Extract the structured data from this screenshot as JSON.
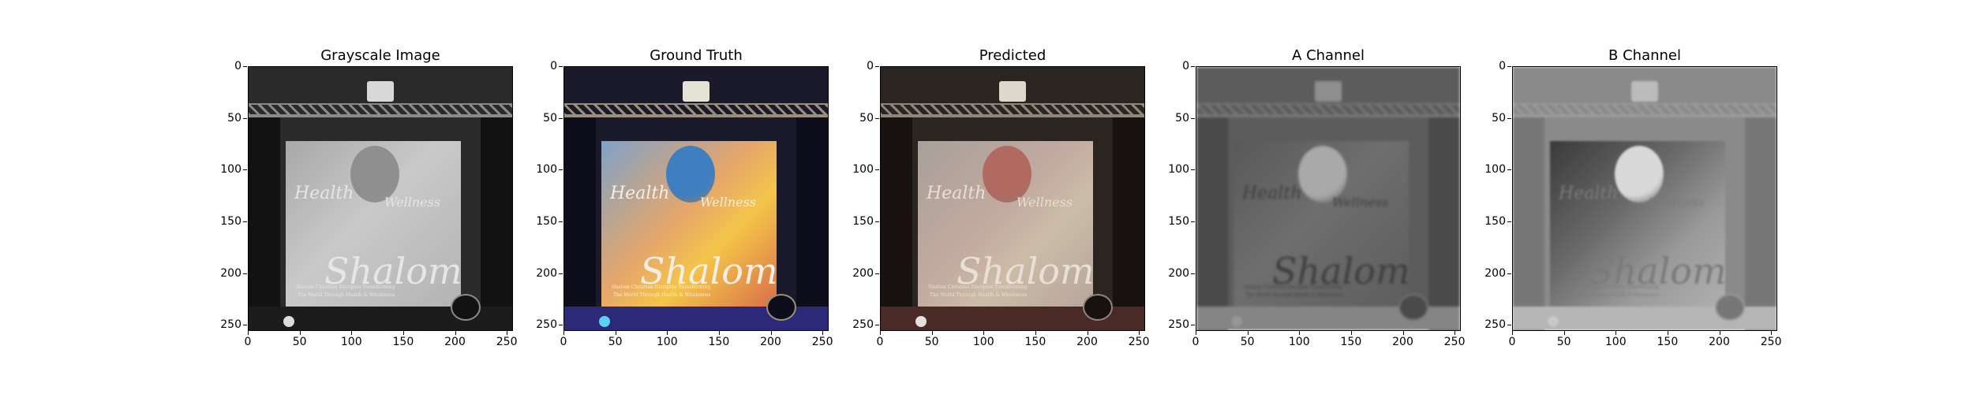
{
  "figure": {
    "panels": [
      {
        "title": "Grayscale Image",
        "variant": "gray"
      },
      {
        "title": "Ground Truth",
        "variant": "truth"
      },
      {
        "title": "Predicted",
        "variant": "pred"
      },
      {
        "title": "A Channel",
        "variant": "a"
      },
      {
        "title": "B Channel",
        "variant": "b"
      }
    ],
    "axes": {
      "yticks": [
        "0",
        "50",
        "100",
        "150",
        "200",
        "250"
      ],
      "xticks": [
        "0",
        "50",
        "100",
        "150",
        "200",
        "250"
      ]
    },
    "scene_text": {
      "word1": "Health",
      "word2": "Wellness",
      "word3": "Shalom",
      "caption1": "Shalom Christian Disciples Transforming",
      "caption2": "The World Through Health & Wholeness"
    }
  }
}
